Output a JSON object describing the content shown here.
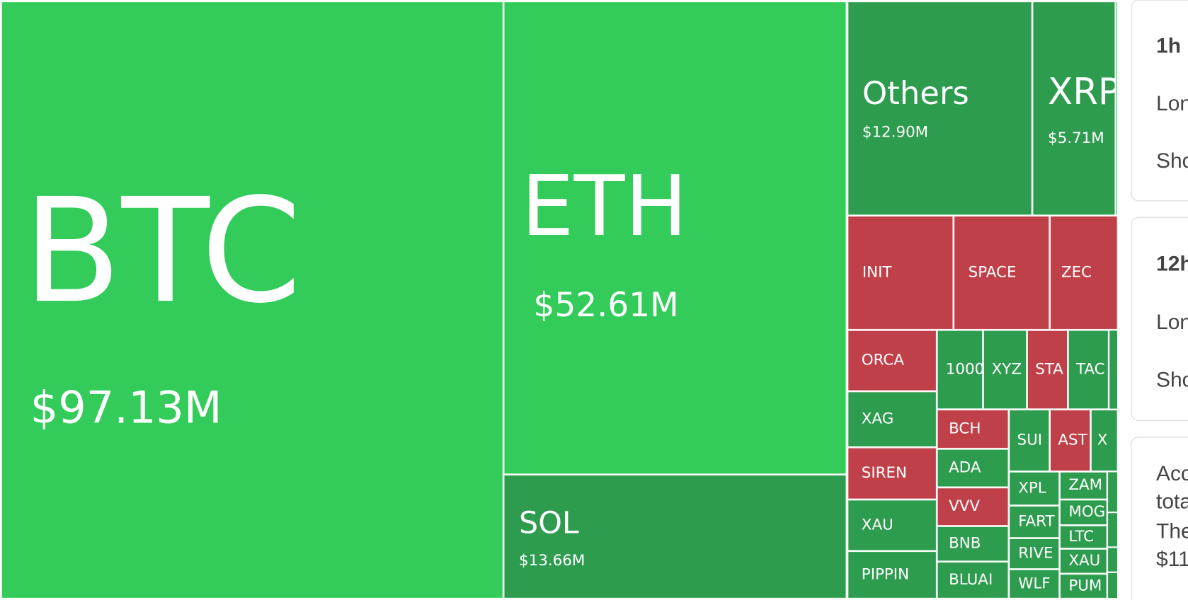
{
  "treemap": {
    "tiles": [
      {
        "label": "BTC",
        "value": "$97.13M"
      },
      {
        "label": "ETH",
        "value": "$52.61M"
      },
      {
        "label": "SOL",
        "value": "$13.66M"
      },
      {
        "label": "Others",
        "value": "$12.90M"
      },
      {
        "label": "XRP",
        "value": "$5.71M"
      },
      {
        "label": "INIT"
      },
      {
        "label": "SPACE"
      },
      {
        "label": "ZEC"
      },
      {
        "label": "ORCA"
      },
      {
        "label": "1000"
      },
      {
        "label": "XYZ"
      },
      {
        "label": "STA"
      },
      {
        "label": "TAC"
      },
      {
        "label": "XAG"
      },
      {
        "label": "BCH"
      },
      {
        "label": "SUI"
      },
      {
        "label": "AST"
      },
      {
        "label": "X"
      },
      {
        "label": "SIREN"
      },
      {
        "label": "ADA"
      },
      {
        "label": "VVV"
      },
      {
        "label": "XPL"
      },
      {
        "label": "ZAM"
      },
      {
        "label": "XAU"
      },
      {
        "label": "FART"
      },
      {
        "label": "MOG"
      },
      {
        "label": "LTC"
      },
      {
        "label": "BNB"
      },
      {
        "label": "RIVE"
      },
      {
        "label": "XAU"
      },
      {
        "label": "PIPPIN"
      },
      {
        "label": "BLUAI"
      },
      {
        "label": "WLF"
      },
      {
        "label": "PUM"
      }
    ]
  },
  "panel": {
    "cards": [
      {
        "lines": [
          "1h",
          "Lon",
          "Sho"
        ]
      },
      {
        "lines": [
          "12h",
          "Lon",
          "Sho"
        ]
      },
      {
        "lines": [
          "Acc",
          "tota",
          "The",
          "$11"
        ]
      }
    ]
  }
}
